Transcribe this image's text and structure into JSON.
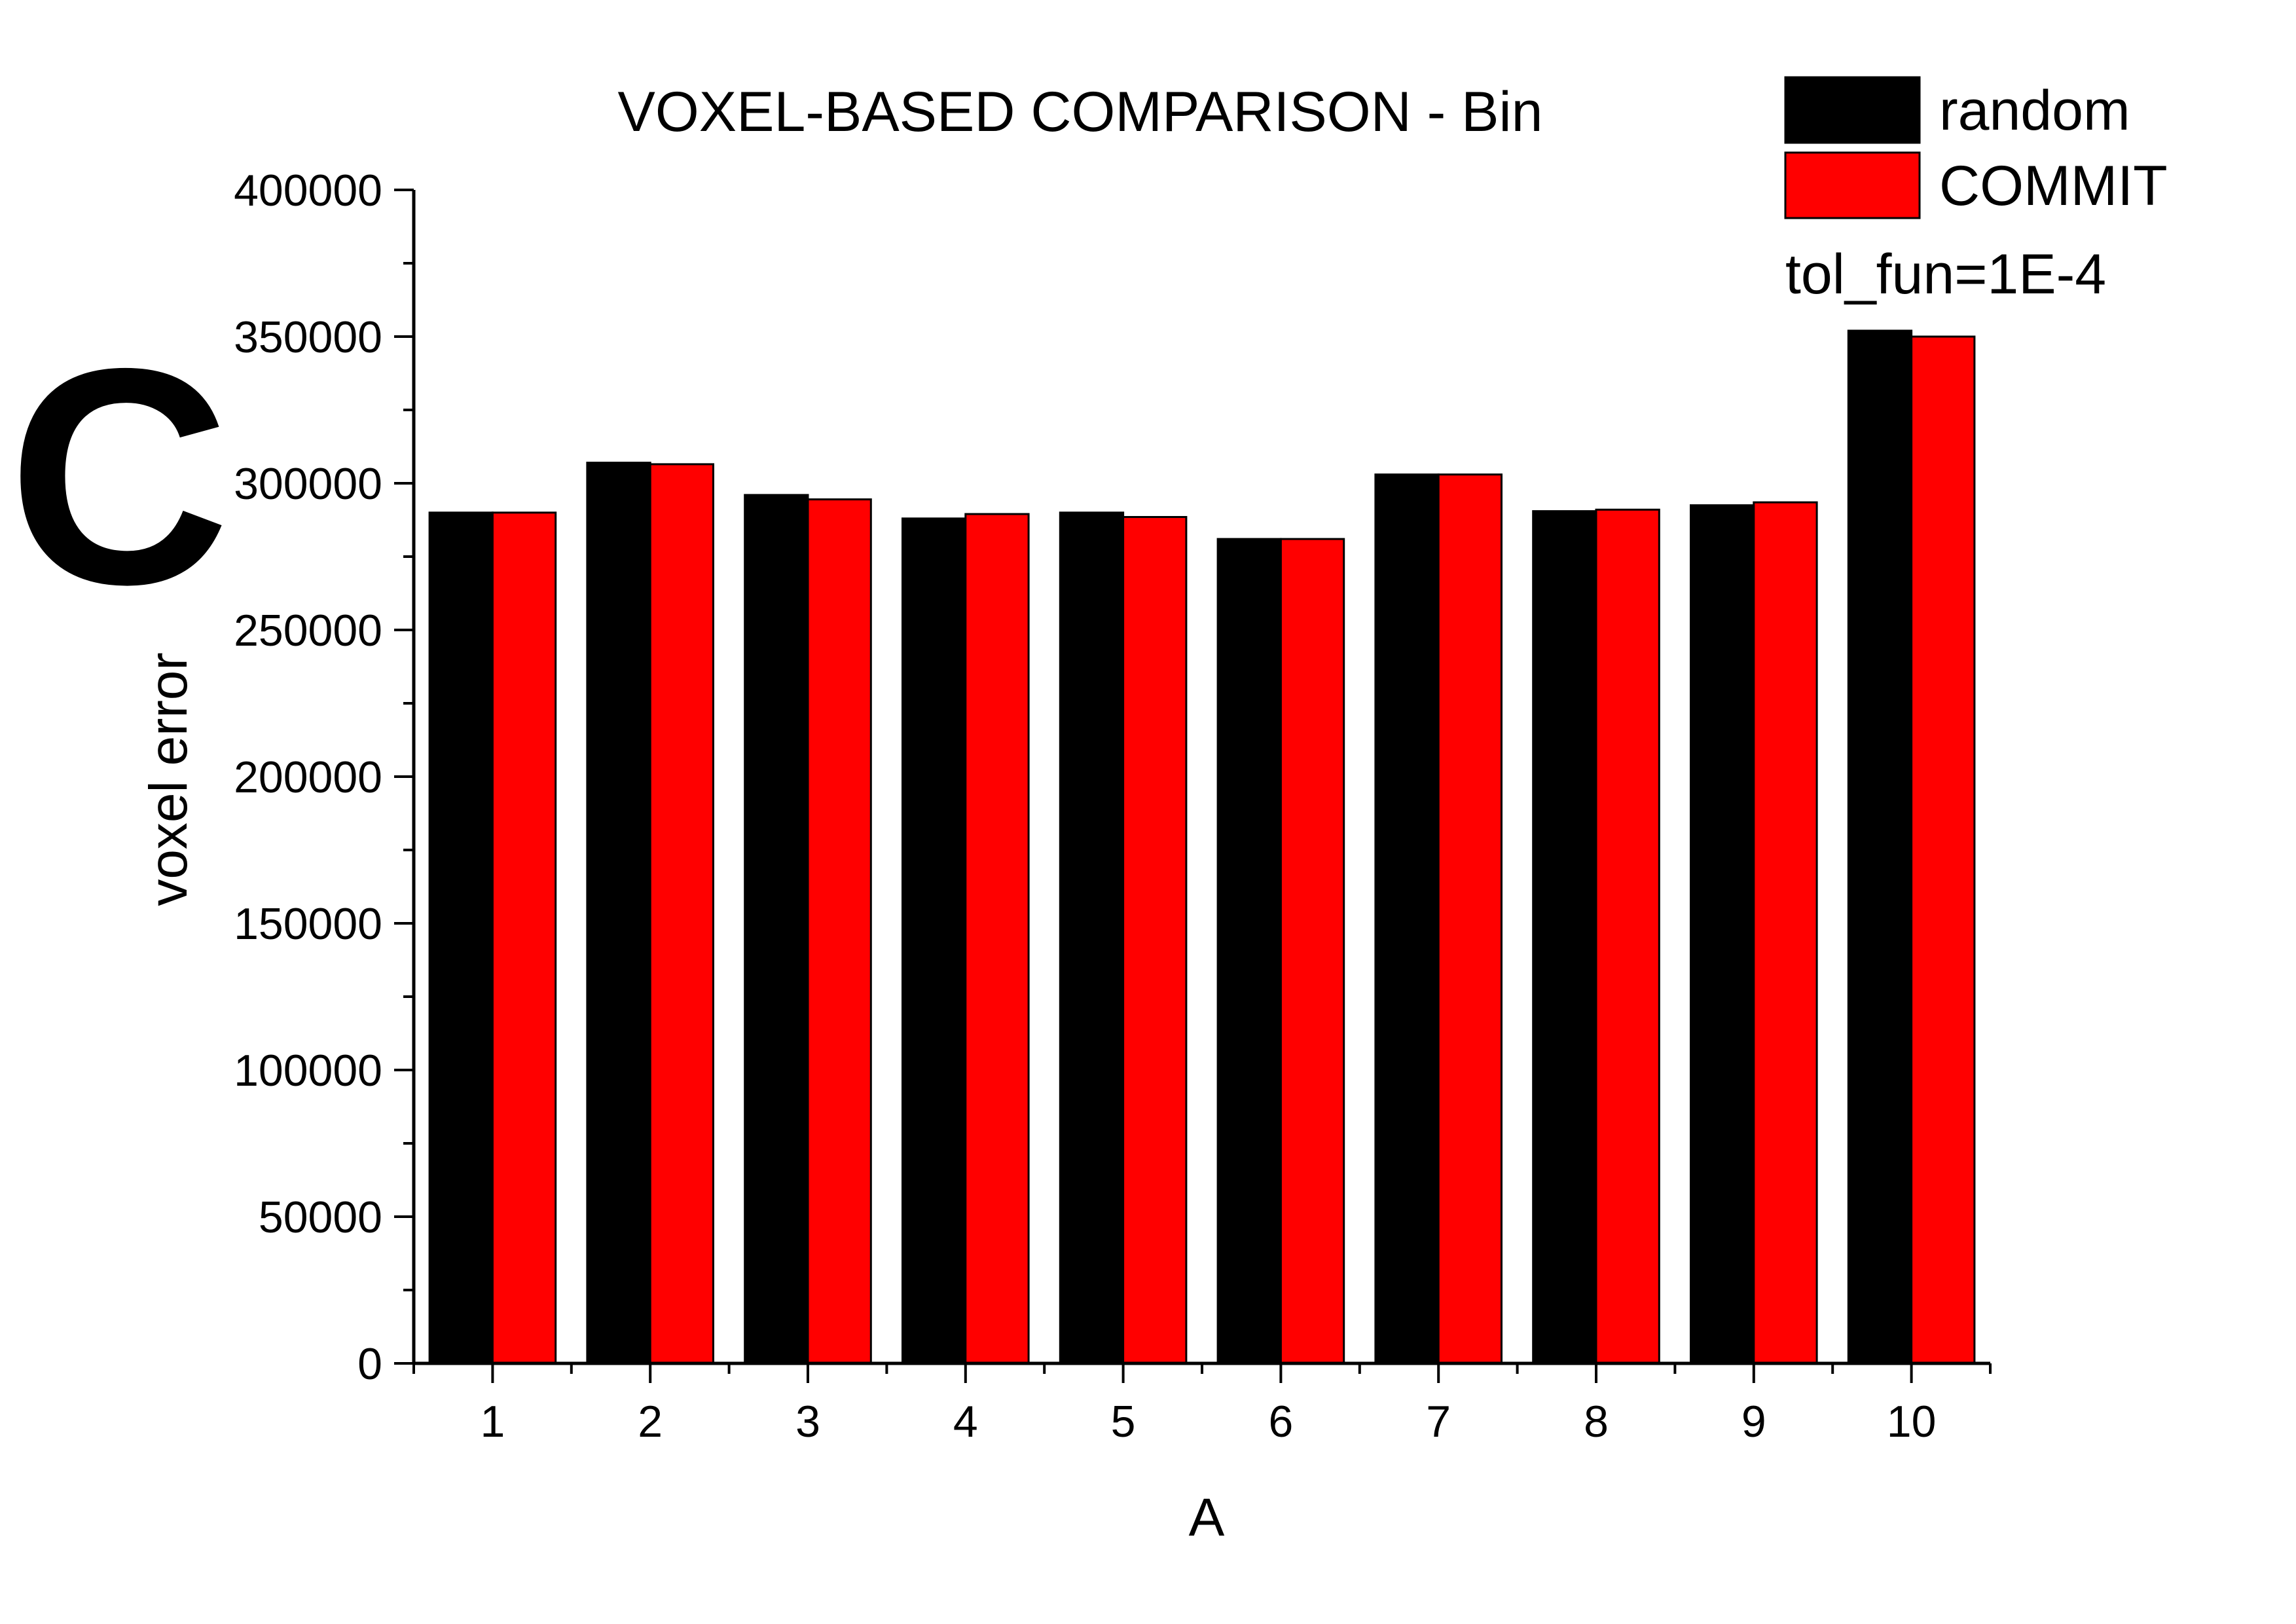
{
  "panel_label": "C",
  "chart_data": {
    "type": "bar",
    "title": "VOXEL-BASED COMPARISON - Bin",
    "xlabel": "A",
    "ylabel": "voxel error",
    "categories": [
      "1",
      "2",
      "3",
      "4",
      "5",
      "6",
      "7",
      "8",
      "9",
      "10"
    ],
    "series": [
      {
        "name": "random",
        "color": "#000000",
        "values": [
          290000,
          307000,
          296000,
          288000,
          290000,
          281000,
          303000,
          290500,
          292500,
          352000
        ]
      },
      {
        "name": "COMMIT",
        "color": "#ff0000",
        "values": [
          290000,
          306500,
          294500,
          289500,
          288500,
          281000,
          303000,
          291000,
          293500,
          350000
        ]
      }
    ],
    "ylim": [
      0,
      400000
    ],
    "yticks": [
      "0",
      "50000",
      "100000",
      "150000",
      "200000",
      "250000",
      "300000",
      "350000",
      "400000"
    ],
    "annotation": "tol_fun=1E-4",
    "legend_position": "top-right",
    "grid": false
  }
}
